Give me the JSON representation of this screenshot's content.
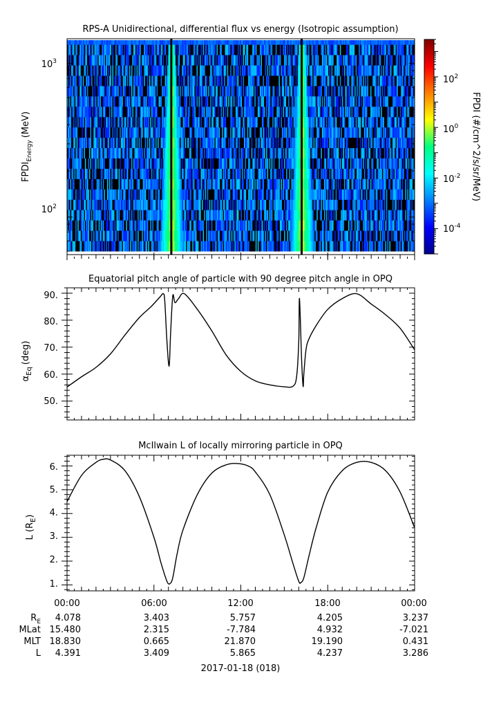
{
  "panels": {
    "spectrogram": {
      "title": "RPS-A Unidirectional, differential flux vs energy (Isotropic assumption)",
      "ylabel_main": "FPDI",
      "ylabel_sub": "Energy",
      "ylabel_unit": "(MeV)",
      "ytick_labels": [
        {
          "base": "10",
          "exp": "3"
        },
        {
          "base": "10",
          "exp": "2"
        }
      ],
      "colorbar": {
        "label": "FPDI (#/cm^2/s/sr/MeV)",
        "tick_labels": [
          {
            "base": "10",
            "exp": "2"
          },
          {
            "base": "10",
            "exp": "0"
          },
          {
            "base": "10",
            "exp": "-2"
          },
          {
            "base": "10",
            "exp": "-4"
          }
        ]
      }
    },
    "pitch": {
      "title": "Equatorial pitch angle of particle with 90 degree pitch angle in OPQ",
      "ylabel_main": "α",
      "ylabel_sub": "Eq",
      "ylabel_unit": "(deg)",
      "ytick_labels": [
        "90.",
        "80.",
        "70.",
        "60.",
        "50."
      ]
    },
    "lshell": {
      "title": "McIlwain L of locally mirroring particle in OPQ",
      "ylabel_main": "L (R",
      "ylabel_sub": "E",
      "ylabel_close": ")",
      "ytick_labels": [
        "6.",
        "5.",
        "4.",
        "3.",
        "2.",
        "1."
      ]
    }
  },
  "xaxis": {
    "time_labels": [
      "00:00",
      "06:00",
      "12:00",
      "18:00",
      "00:00"
    ],
    "row_labels": [
      {
        "main": "R",
        "sub": "E"
      },
      {
        "main": "MLat",
        "sub": ""
      },
      {
        "main": "MLT",
        "sub": ""
      },
      {
        "main": "L",
        "sub": ""
      }
    ],
    "rows": [
      [
        "4.078",
        "3.403",
        "5.757",
        "4.205",
        "3.237"
      ],
      [
        "15.480",
        "2.315",
        "-7.784",
        "4.932",
        "-7.021"
      ],
      [
        "18.830",
        "0.665",
        "21.870",
        "19.190",
        "0.431"
      ],
      [
        "4.391",
        "3.409",
        "5.865",
        "4.237",
        "3.286"
      ]
    ],
    "date_label": "2017-01-18 (018)"
  },
  "chart_data": [
    {
      "type": "heatmap",
      "title": "RPS-A Unidirectional, differential flux vs energy (Isotropic assumption)",
      "xlabel": "",
      "ylabel": "FPDI Energy (MeV)",
      "x_range_hours": [
        0,
        24
      ],
      "y_scale": "log",
      "ylim_MeV": [
        57,
        1450
      ],
      "colorbar_scale": "log",
      "colorbar_range": [
        1e-05,
        3000
      ],
      "colorbar_label": "FPDI (#/cm^2/s/sr/MeV)",
      "colormap": "rainbow",
      "features": [
        {
          "description": "enhanced flux band (green-yellow)",
          "center_hour": 7.2,
          "peak_flux": 1
        },
        {
          "description": "enhanced flux band (green-yellow)",
          "center_hour": 16.2,
          "peak_flux": 1
        }
      ],
      "background_flux": 0.001
    },
    {
      "type": "line",
      "title": "Equatorial pitch angle of particle with 90 degree pitch angle in OPQ",
      "xlabel": "",
      "ylabel": "αEq (deg)",
      "ylim": [
        43,
        92
      ],
      "x": [
        0,
        1,
        2,
        3,
        4,
        5,
        5.8,
        6.4,
        6.65,
        6.75,
        6.9,
        7.05,
        7.15,
        7.3,
        7.45,
        7.7,
        8.1,
        9,
        10,
        11,
        12,
        13,
        14,
        15,
        15.6,
        15.85,
        16.0,
        16.05,
        16.2,
        16.3,
        16.35,
        16.5,
        16.7,
        17.2,
        18,
        19,
        20,
        21,
        22,
        23,
        24
      ],
      "y": [
        55.2,
        59,
        62.5,
        67.5,
        74.5,
        81,
        85,
        88.5,
        89.8,
        87,
        72,
        63,
        75,
        89,
        86.5,
        88,
        89.8,
        84,
        76,
        67,
        61,
        57.5,
        56,
        55.3,
        55.5,
        59,
        72,
        88,
        65,
        55.5,
        60,
        69,
        73,
        78,
        84,
        88,
        89.8,
        86,
        82,
        77,
        69
      ]
    },
    {
      "type": "line",
      "title": "McIlwain L of locally mirroring particle in OPQ",
      "xlabel": "",
      "ylabel": "L (RE)",
      "ylim": [
        0.75,
        6.45
      ],
      "x": [
        0,
        1,
        2,
        2.5,
        3,
        4,
        5,
        6,
        6.5,
        6.9,
        7.1,
        7.3,
        7.6,
        8,
        9,
        10,
        11,
        11.8,
        12.5,
        13,
        14,
        15,
        15.6,
        16.0,
        16.15,
        16.35,
        16.7,
        17.2,
        18,
        19,
        20,
        21,
        22,
        23,
        24
      ],
      "y": [
        4.5,
        5.6,
        6.15,
        6.28,
        6.25,
        5.8,
        4.7,
        3.0,
        1.9,
        1.15,
        1.05,
        1.3,
        2.3,
        3.3,
        4.8,
        5.7,
        6.05,
        6.1,
        6.0,
        5.75,
        4.8,
        3.1,
        1.9,
        1.15,
        1.1,
        1.3,
        2.2,
        3.4,
        4.9,
        5.8,
        6.15,
        6.15,
        5.8,
        4.9,
        3.4
      ]
    }
  ]
}
